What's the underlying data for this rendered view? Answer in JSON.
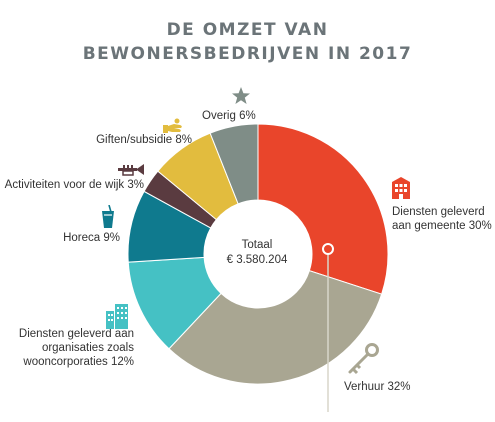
{
  "chart_data": {
    "type": "pie",
    "title_line1": "DE OMZET VAN",
    "title_line2": "BEWONERSBEDRIJVEN IN 2017",
    "center_label": "Totaal",
    "center_value": "€ 3.580.204",
    "slices": [
      {
        "label_lines": [
          "Diensten geleverd",
          "aan gemeente 30%"
        ],
        "value": 30,
        "color": "#e9452b",
        "icon": "building-icon"
      },
      {
        "label_lines": [
          "Verhuur 32%"
        ],
        "value": 32,
        "color": "#a9a692",
        "icon": "key-icon"
      },
      {
        "label_lines": [
          "Diensten geleverd aan",
          "organisaties zoals",
          "wooncorporaties 12%"
        ],
        "value": 12,
        "color": "#45c1c4",
        "icon": "buildings-icon"
      },
      {
        "label_lines": [
          "Horeca 9%"
        ],
        "value": 9,
        "color": "#0f7a8e",
        "icon": "drink-icon"
      },
      {
        "label_lines": [
          "Activiteiten voor de wijk 3%"
        ],
        "value": 3,
        "color": "#5a3b40",
        "icon": "trumpet-icon"
      },
      {
        "label_lines": [
          "Giften/subsidie 8%"
        ],
        "value": 8,
        "color": "#e2bc3e",
        "icon": "hand-icon"
      },
      {
        "label_lines": [
          "Overig 6%"
        ],
        "value": 6,
        "color": "#7f8d87",
        "icon": "star-icon"
      }
    ]
  }
}
